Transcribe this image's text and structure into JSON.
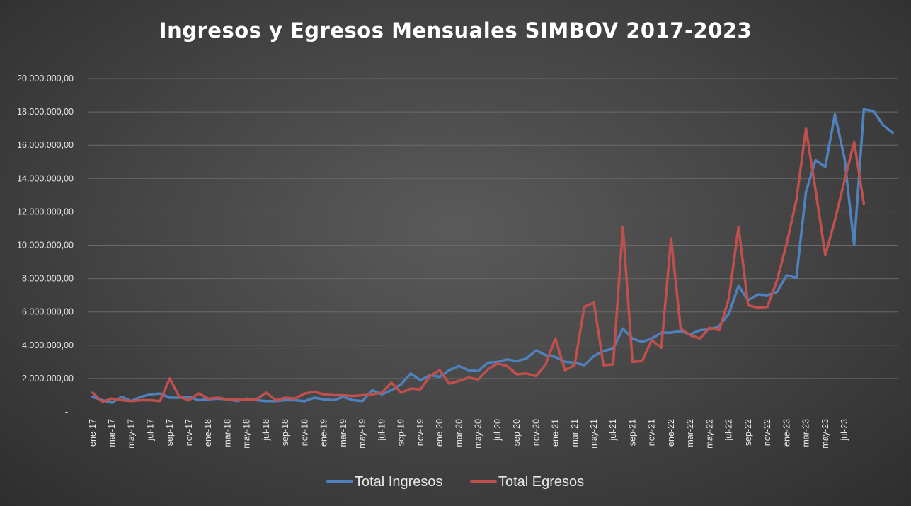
{
  "chart_data": {
    "type": "line",
    "title": "Ingresos y Egresos Mensuales SIMBOV 2017-2023",
    "xlabel": "",
    "ylabel": "",
    "ylim": [
      0,
      20000000
    ],
    "y_ticks": [
      "-",
      "2.000.000,00",
      "4.000.000,00",
      "6.000.000,00",
      "8.000.000,00",
      "10.000.000,00",
      "12.000.000,00",
      "14.000.000,00",
      "16.000.000,00",
      "18.000.000,00",
      "20.000.000,00"
    ],
    "x_tick_labels": [
      "ene-17",
      "mar-17",
      "may-17",
      "jul-17",
      "sep-17",
      "nov-17",
      "ene-18",
      "mar-18",
      "may-18",
      "jul-18",
      "sep-18",
      "nov-18",
      "ene-19",
      "mar-19",
      "may-19",
      "jul-19",
      "sep-19",
      "nov-19",
      "ene-20",
      "mar-20",
      "may-20",
      "jul-20",
      "sep-20",
      "nov-20",
      "ene-21",
      "mar-21",
      "may-21",
      "jul-21",
      "sep-21",
      "nov-21",
      "ene-22",
      "mar-22",
      "may-22",
      "jul-22",
      "sep-22",
      "nov-22",
      "ene-23",
      "mar-23",
      "may-23",
      "jul-23"
    ],
    "grid": true,
    "legend_position": "bottom",
    "series": [
      {
        "name": "Total Ingresos",
        "color": "#4f81bd",
        "values": [
          900000,
          700000,
          550000,
          900000,
          650000,
          900000,
          1050000,
          1100000,
          850000,
          850000,
          900000,
          700000,
          750000,
          800000,
          750000,
          650000,
          800000,
          700000,
          650000,
          650000,
          700000,
          700000,
          650000,
          850000,
          750000,
          700000,
          900000,
          700000,
          650000,
          1300000,
          1050000,
          1300000,
          1650000,
          2300000,
          1900000,
          2200000,
          2100000,
          2500000,
          2750000,
          2500000,
          2450000,
          2950000,
          3000000,
          3150000,
          3050000,
          3200000,
          3700000,
          3400000,
          3300000,
          3000000,
          2950000,
          2800000,
          3350000,
          3650000,
          3800000,
          5000000,
          4400000,
          4200000,
          4400000,
          4750000,
          4750000,
          4850000,
          4650000,
          4900000,
          4950000,
          5150000,
          5900000,
          7550000,
          6700000,
          7050000,
          7000000,
          7200000,
          8200000,
          8050000,
          13200000,
          15100000,
          14700000,
          17850000,
          15200000,
          10000000,
          18150000,
          18050000,
          17200000,
          16750000
        ]
      },
      {
        "name": "Total Egresos",
        "color": "#c0504d",
        "values": [
          1150000,
          600000,
          800000,
          700000,
          650000,
          700000,
          700000,
          650000,
          2000000,
          900000,
          700000,
          1100000,
          800000,
          850000,
          750000,
          750000,
          750000,
          750000,
          1150000,
          700000,
          850000,
          800000,
          1100000,
          1200000,
          1050000,
          1000000,
          1000000,
          950000,
          1000000,
          1050000,
          1150000,
          1750000,
          1150000,
          1400000,
          1350000,
          2150000,
          2500000,
          1700000,
          1850000,
          2050000,
          1950000,
          2550000,
          2900000,
          2750000,
          2250000,
          2300000,
          2150000,
          2850000,
          4400000,
          2500000,
          2800000,
          6300000,
          6550000,
          2800000,
          2850000,
          11100000,
          3000000,
          3050000,
          4300000,
          3850000,
          10400000,
          5000000,
          4600000,
          4400000,
          5050000,
          4900000,
          6800000,
          11100000,
          6400000,
          6250000,
          6300000,
          7900000,
          10100000,
          12700000,
          17000000,
          13300000,
          9400000,
          11500000,
          13900000,
          16200000,
          12500000
        ]
      }
    ]
  }
}
